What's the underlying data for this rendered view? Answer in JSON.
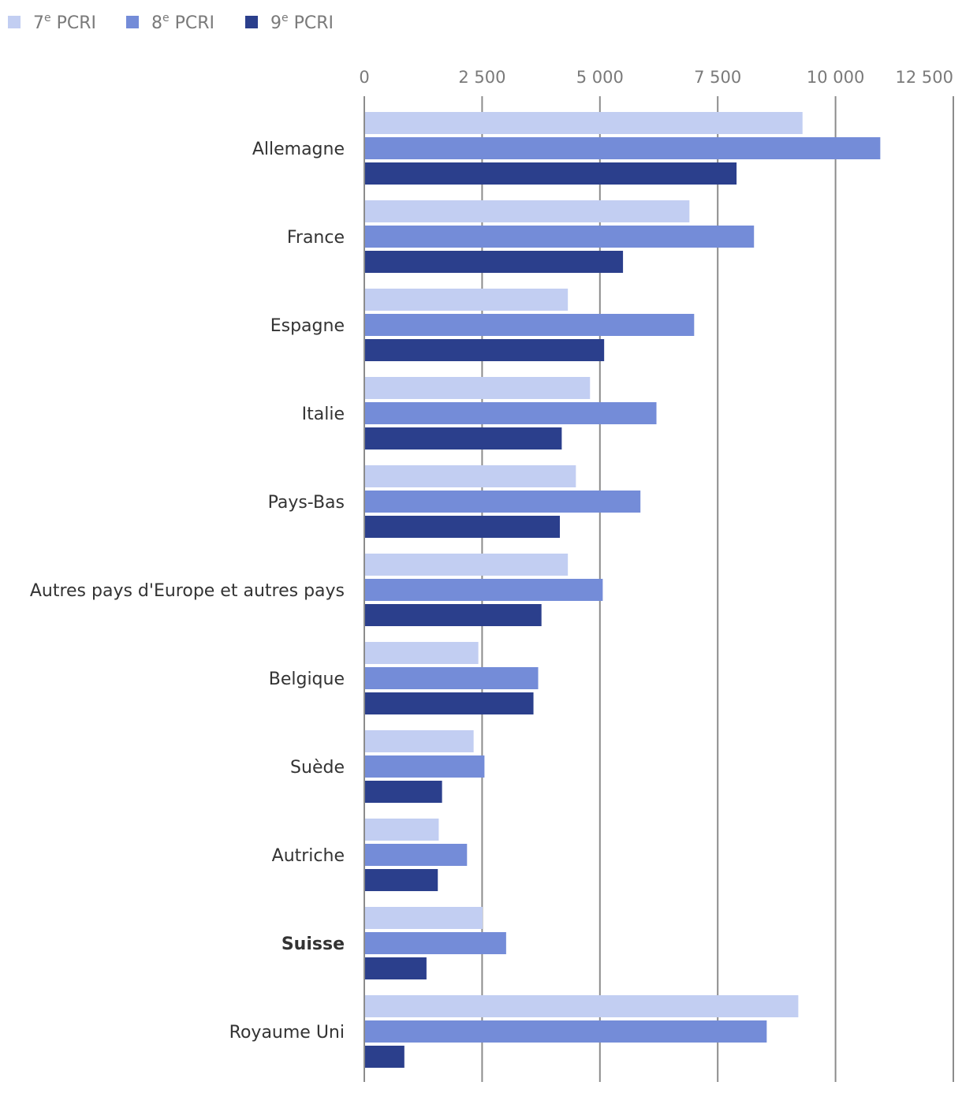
{
  "chart_data": {
    "type": "bar",
    "orientation": "horizontal",
    "categories": [
      "Allemagne",
      "France",
      "Espagne",
      "Italie",
      "Pays-Bas",
      "Autres pays d'Europe et autres pays",
      "Belgique",
      "Suède",
      "Autriche",
      "Suisse",
      "Royaume Uni"
    ],
    "highlighted_category": "Suisse",
    "series": [
      {
        "name_base": "7",
        "name_sup": "e",
        "name_rest": " PCRI",
        "color": "#c2cef2",
        "values": [
          9300,
          6900,
          4320,
          4790,
          4490,
          4320,
          2420,
          2320,
          1580,
          2510,
          9210
        ]
      },
      {
        "name_base": "8",
        "name_sup": "e",
        "name_rest": " PCRI",
        "color": "#748cd8",
        "values": [
          10950,
          8270,
          7000,
          6200,
          5860,
          5060,
          3690,
          2550,
          2180,
          3010,
          8540
        ]
      },
      {
        "name_base": "9",
        "name_sup": "e",
        "name_rest": " PCRI",
        "color": "#2b3f8c",
        "values": [
          7900,
          5490,
          5090,
          4190,
          4150,
          3760,
          3590,
          1650,
          1560,
          1320,
          850
        ]
      }
    ],
    "x_ticks": [
      {
        "value": 0,
        "label": "0"
      },
      {
        "value": 2500,
        "label": "2 500"
      },
      {
        "value": 5000,
        "label": "5 000"
      },
      {
        "value": 7500,
        "label": "7 500"
      },
      {
        "value": 10000,
        "label": "10 000"
      },
      {
        "value": 12500,
        "label": "12 500"
      }
    ],
    "xlim": [
      0,
      12500
    ],
    "grid": true,
    "legend_position": "top-left",
    "title": "",
    "xlabel": "",
    "ylabel": ""
  }
}
